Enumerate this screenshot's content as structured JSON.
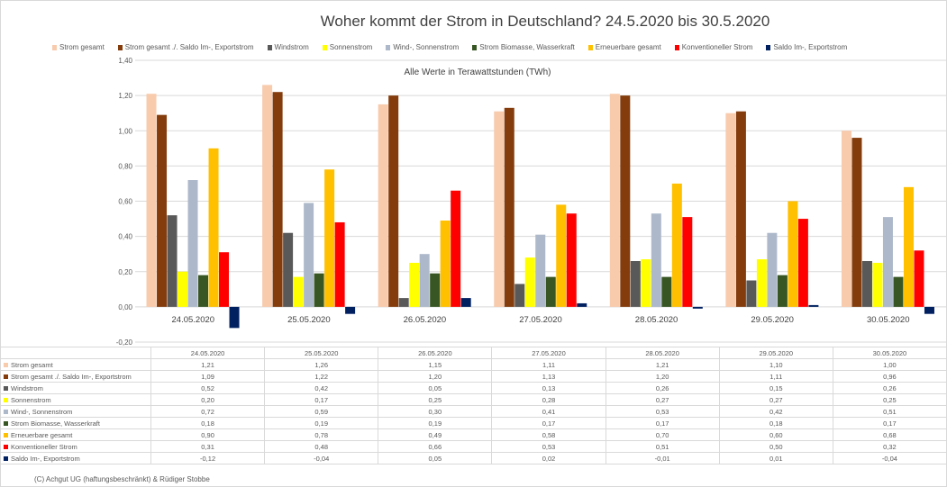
{
  "chart_data": {
    "type": "bar",
    "title": "Woher kommt der Strom in Deutschland? 24.5.2020 bis 30.5.2020",
    "subtitle": "Alle Werte in Terawattstunden (TWh)",
    "ylim": [
      -0.2,
      1.4
    ],
    "yticks": [
      "-0,20",
      "0,00",
      "0,20",
      "0,40",
      "0,60",
      "0,80",
      "1,00",
      "1,20",
      "1,40"
    ],
    "legend_position": "top",
    "categories": [
      "24.05.2020",
      "25.05.2020",
      "26.05.2020",
      "27.05.2020",
      "28.05.2020",
      "29.05.2020",
      "30.05.2020"
    ],
    "series": [
      {
        "name": "Strom gesamt",
        "color": "#f8cbad",
        "values": [
          1.21,
          1.26,
          1.15,
          1.11,
          1.21,
          1.1,
          1.0
        ],
        "labels": [
          "1,21",
          "1,26",
          "1,15",
          "1,11",
          "1,21",
          "1,10",
          "1,00"
        ]
      },
      {
        "name": "Strom gesamt ./. Saldo Im-, Exportstrom",
        "color": "#843c0c",
        "values": [
          1.09,
          1.22,
          1.2,
          1.13,
          1.2,
          1.11,
          0.96
        ],
        "labels": [
          "1,09",
          "1,22",
          "1,20",
          "1,13",
          "1,20",
          "1,11",
          "0,96"
        ]
      },
      {
        "name": "Windstrom",
        "color": "#595959",
        "values": [
          0.52,
          0.42,
          0.05,
          0.13,
          0.26,
          0.15,
          0.26
        ],
        "labels": [
          "0,52",
          "0,42",
          "0,05",
          "0,13",
          "0,26",
          "0,15",
          "0,26"
        ]
      },
      {
        "name": "Sonnenstrom",
        "color": "#ffff00",
        "values": [
          0.2,
          0.17,
          0.25,
          0.28,
          0.27,
          0.27,
          0.25
        ],
        "labels": [
          "0,20",
          "0,17",
          "0,25",
          "0,28",
          "0,27",
          "0,27",
          "0,25"
        ]
      },
      {
        "name": "Wind-, Sonnenstrom",
        "color": "#adb9ca",
        "values": [
          0.72,
          0.59,
          0.3,
          0.41,
          0.53,
          0.42,
          0.51
        ],
        "labels": [
          "0,72",
          "0,59",
          "0,30",
          "0,41",
          "0,53",
          "0,42",
          "0,51"
        ]
      },
      {
        "name": "Strom Biomasse, Wasserkraft",
        "color": "#375623",
        "values": [
          0.18,
          0.19,
          0.19,
          0.17,
          0.17,
          0.18,
          0.17
        ],
        "labels": [
          "0,18",
          "0,19",
          "0,19",
          "0,17",
          "0,17",
          "0,18",
          "0,17"
        ]
      },
      {
        "name": "Erneuerbare gesamt",
        "color": "#ffc000",
        "values": [
          0.9,
          0.78,
          0.49,
          0.58,
          0.7,
          0.6,
          0.68
        ],
        "labels": [
          "0,90",
          "0,78",
          "0,49",
          "0,58",
          "0,70",
          "0,60",
          "0,68"
        ]
      },
      {
        "name": "Konventioneller Strom",
        "color": "#ff0000",
        "values": [
          0.31,
          0.48,
          0.66,
          0.53,
          0.51,
          0.5,
          0.32
        ],
        "labels": [
          "0,31",
          "0,48",
          "0,66",
          "0,53",
          "0,51",
          "0,50",
          "0,32"
        ]
      },
      {
        "name": "Saldo Im-, Exportstrom",
        "color": "#002060",
        "values": [
          -0.12,
          -0.04,
          0.05,
          0.02,
          -0.01,
          0.01,
          -0.04
        ],
        "labels": [
          "-0,12",
          "-0,04",
          "0,05",
          "0,02",
          "-0,01",
          "0,01",
          "-0,04"
        ]
      }
    ]
  },
  "footer": "(C) Achgut UG (haftungsbeschränkt) & Rüdiger Stobbe"
}
